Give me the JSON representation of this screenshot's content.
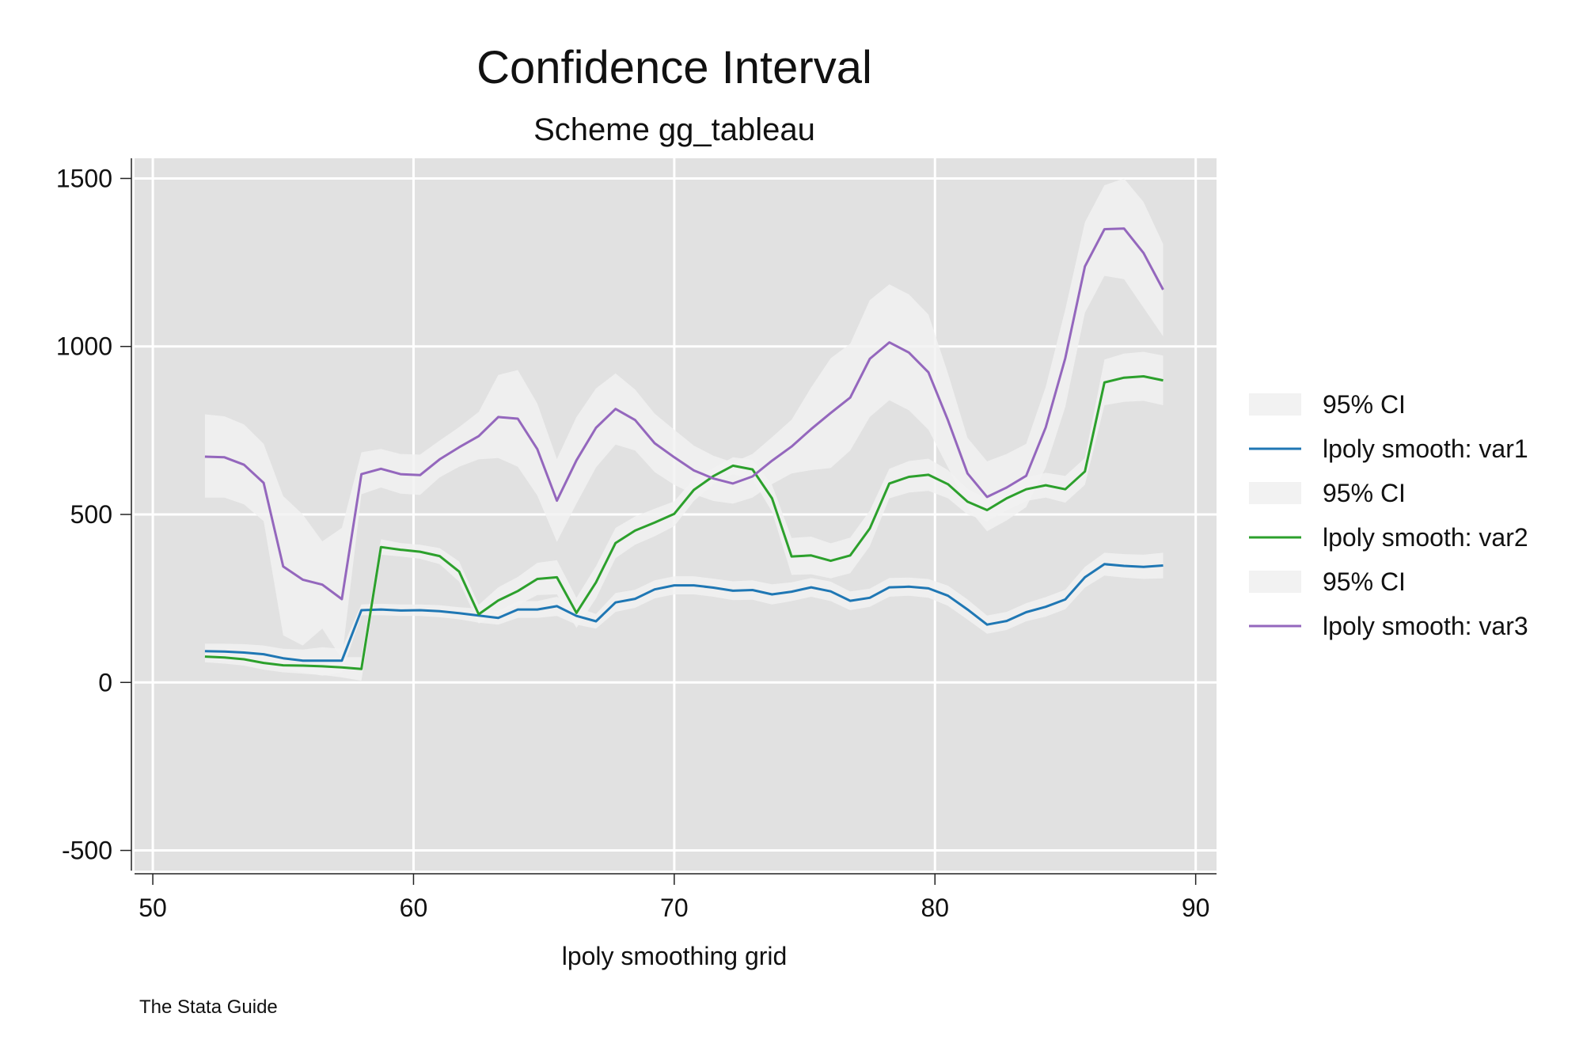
{
  "chart_data": {
    "type": "line",
    "title": "Confidence Interval",
    "subtitle": "Scheme gg_tableau",
    "xlabel": "lpoly smoothing grid",
    "ylabel": "",
    "note": "The Stata Guide",
    "xlim": [
      49.3,
      90.8
    ],
    "ylim": [
      -560,
      1560
    ],
    "x_ticks": [
      50,
      60,
      70,
      80,
      90
    ],
    "x_tick_labels": [
      "50",
      "60",
      "70",
      "80",
      "90"
    ],
    "y_ticks": [
      -500,
      0,
      500,
      1000,
      1500
    ],
    "y_tick_labels": [
      "-500",
      "0",
      "500",
      "1000",
      "1500"
    ],
    "grid": true,
    "legend_position": "right",
    "legend": [
      {
        "label": "95% CI",
        "kind": "area"
      },
      {
        "label": "lpoly smooth: var1",
        "kind": "line",
        "color": "#1f77b4"
      },
      {
        "label": "95% CI",
        "kind": "area"
      },
      {
        "label": "lpoly smooth: var2",
        "kind": "line",
        "color": "#2ca02c"
      },
      {
        "label": "95% CI",
        "kind": "area"
      },
      {
        "label": "lpoly smooth: var3",
        "kind": "line",
        "color": "#9467bd"
      }
    ],
    "x": [
      52,
      52.75,
      53.5,
      54.25,
      55,
      55.75,
      56.5,
      57.25,
      58,
      58.75,
      59.5,
      60.25,
      61,
      61.75,
      62.5,
      63.25,
      64,
      64.75,
      65.5,
      66.25,
      67,
      67.75,
      68.5,
      69.25,
      70,
      70.75,
      71.5,
      72.25,
      73,
      73.75,
      74.5,
      75.25,
      76,
      76.75,
      77.5,
      78.25,
      79,
      79.75,
      80.5,
      81.25,
      82,
      82.75,
      83.5,
      84.25,
      85,
      85.75,
      86.5,
      87.25,
      88,
      88.75
    ],
    "series": [
      {
        "name": "lpoly smooth: var1",
        "color": "#1f77b4",
        "values": [
          93,
          92,
          89,
          84,
          72,
          65,
          65,
          65,
          215,
          217,
          214,
          215,
          212,
          206,
          199,
          192,
          217,
          217,
          227,
          198,
          182,
          238,
          249,
          277,
          289,
          289,
          282,
          273,
          275,
          262,
          270,
          283,
          271,
          243,
          252,
          283,
          285,
          280,
          258,
          217,
          172,
          183,
          209,
          225,
          247,
          313,
          352,
          347,
          344,
          348
        ],
        "ci_low": [
          70,
          68,
          64,
          58,
          42,
          30,
          20,
          30,
          200,
          200,
          198,
          198,
          194,
          188,
          178,
          172,
          192,
          192,
          198,
          172,
          160,
          210,
          222,
          250,
          262,
          262,
          255,
          245,
          246,
          232,
          242,
          255,
          242,
          215,
          225,
          255,
          258,
          252,
          228,
          187,
          145,
          156,
          182,
          196,
          218,
          282,
          318,
          312,
          308,
          310
        ],
        "ci_high": [
          115,
          115,
          114,
          110,
          100,
          98,
          105,
          100,
          232,
          234,
          232,
          232,
          230,
          224,
          220,
          212,
          242,
          242,
          255,
          224,
          204,
          266,
          276,
          304,
          316,
          316,
          309,
          301,
          304,
          292,
          298,
          311,
          300,
          271,
          279,
          311,
          312,
          308,
          288,
          247,
          199,
          210,
          236,
          254,
          276,
          344,
          386,
          382,
          380,
          386
        ]
      },
      {
        "name": "lpoly smooth: var2",
        "color": "#2ca02c",
        "values": [
          77,
          74,
          69,
          58,
          51,
          50,
          48,
          45,
          40,
          403,
          395,
          389,
          376,
          330,
          203,
          244,
          272,
          308,
          313,
          207,
          298,
          415,
          452,
          476,
          502,
          573,
          614,
          645,
          634,
          548,
          375,
          378,
          362,
          378,
          458,
          592,
          612,
          618,
          590,
          538,
          513,
          548,
          575,
          587,
          575,
          628,
          893,
          907,
          911,
          899
        ],
        "ci_low": [
          60,
          56,
          50,
          38,
          30,
          26,
          22,
          15,
          5,
          380,
          375,
          368,
          352,
          300,
          175,
          205,
          230,
          260,
          262,
          162,
          250,
          370,
          410,
          435,
          465,
          540,
          590,
          620,
          605,
          508,
          320,
          322,
          310,
          325,
          405,
          548,
          565,
          570,
          548,
          500,
          480,
          512,
          540,
          550,
          535,
          588,
          825,
          835,
          838,
          825
        ],
        "ci_high": [
          94,
          92,
          88,
          78,
          72,
          74,
          74,
          75,
          75,
          426,
          415,
          410,
          400,
          360,
          231,
          283,
          314,
          356,
          364,
          252,
          346,
          460,
          494,
          517,
          539,
          606,
          638,
          670,
          663,
          588,
          430,
          434,
          414,
          431,
          511,
          636,
          659,
          666,
          632,
          576,
          546,
          584,
          610,
          624,
          615,
          668,
          961,
          979,
          984,
          973
        ]
      },
      {
        "name": "lpoly smooth: var3",
        "color": "#9467bd",
        "values": [
          672,
          670,
          648,
          594,
          345,
          306,
          291,
          248,
          620,
          636,
          620,
          617,
          664,
          700,
          733,
          790,
          785,
          694,
          541,
          661,
          758,
          814,
          781,
          712,
          670,
          631,
          607,
          592,
          613,
          660,
          702,
          754,
          802,
          848,
          963,
          1012,
          982,
          923,
          780,
          622,
          552,
          580,
          615,
          759,
          965,
          1238,
          1349,
          1351,
          1278,
          1169
        ],
        "ci_low": [
          550,
          550,
          530,
          480,
          140,
          110,
          160,
          70,
          560,
          580,
          562,
          558,
          610,
          642,
          664,
          668,
          642,
          556,
          418,
          532,
          640,
          708,
          690,
          626,
          588,
          560,
          540,
          532,
          550,
          590,
          622,
          632,
          638,
          690,
          790,
          840,
          810,
          752,
          640,
          520,
          450,
          482,
          522,
          640,
          820,
          1100,
          1210,
          1200,
          1115,
          1030
        ],
        "ci_high": [
          798,
          792,
          768,
          710,
          555,
          500,
          420,
          460,
          685,
          695,
          680,
          678,
          720,
          760,
          805,
          915,
          930,
          830,
          665,
          790,
          875,
          920,
          872,
          800,
          752,
          705,
          675,
          655,
          680,
          730,
          782,
          878,
          965,
          1008,
          1138,
          1185,
          1155,
          1095,
          920,
          728,
          658,
          680,
          710,
          880,
          1110,
          1370,
          1480,
          1500,
          1430,
          1305
        ]
      }
    ]
  }
}
